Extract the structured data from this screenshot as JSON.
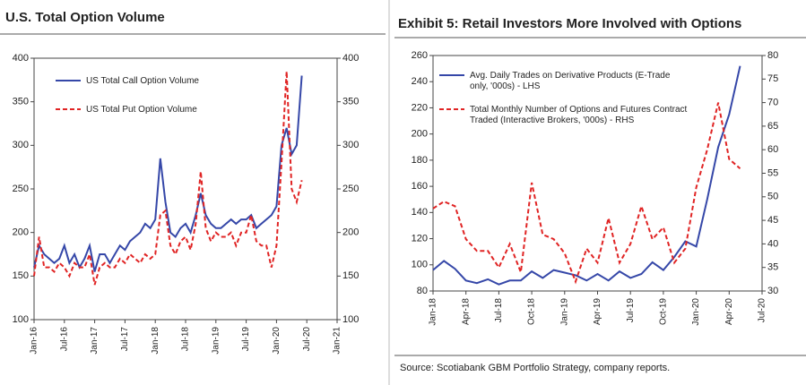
{
  "chart_data": [
    {
      "type": "line",
      "title": "U.S. Total Option Volume",
      "x": [
        "Jan-16",
        "Feb-16",
        "Mar-16",
        "Apr-16",
        "May-16",
        "Jun-16",
        "Jul-16",
        "Aug-16",
        "Sep-16",
        "Oct-16",
        "Nov-16",
        "Dec-16",
        "Jan-17",
        "Feb-17",
        "Mar-17",
        "Apr-17",
        "May-17",
        "Jun-17",
        "Jul-17",
        "Aug-17",
        "Sep-17",
        "Oct-17",
        "Nov-17",
        "Dec-17",
        "Jan-18",
        "Feb-18",
        "Mar-18",
        "Apr-18",
        "May-18",
        "Jun-18",
        "Jul-18",
        "Aug-18",
        "Sep-18",
        "Oct-18",
        "Nov-18",
        "Dec-18",
        "Jan-19",
        "Feb-19",
        "Mar-19",
        "Apr-19",
        "May-19",
        "Jun-19",
        "Jul-19",
        "Aug-19",
        "Sep-19",
        "Oct-19",
        "Nov-19",
        "Dec-19",
        "Jan-20",
        "Feb-20",
        "Mar-20",
        "Apr-20",
        "May-20",
        "Jun-20"
      ],
      "series": [
        {
          "name": "US Total Call Option Volume",
          "color": "#3547a8",
          "style": "solid",
          "values": [
            160,
            185,
            175,
            170,
            165,
            170,
            185,
            165,
            175,
            160,
            170,
            185,
            155,
            175,
            175,
            165,
            175,
            185,
            180,
            190,
            195,
            200,
            210,
            205,
            215,
            285,
            235,
            200,
            195,
            205,
            210,
            200,
            220,
            245,
            220,
            210,
            205,
            205,
            210,
            215,
            210,
            215,
            215,
            220,
            205,
            210,
            215,
            220,
            230,
            300,
            320,
            290,
            300,
            380
          ]
        },
        {
          "name": "US Total Put Option Volume",
          "color": "#e02424",
          "style": "dashed",
          "values": [
            150,
            195,
            160,
            160,
            155,
            165,
            160,
            150,
            165,
            160,
            160,
            175,
            140,
            160,
            165,
            160,
            160,
            170,
            165,
            175,
            170,
            165,
            175,
            170,
            175,
            220,
            225,
            185,
            175,
            190,
            195,
            180,
            210,
            270,
            205,
            190,
            200,
            195,
            195,
            200,
            185,
            200,
            200,
            220,
            190,
            185,
            185,
            160,
            185,
            280,
            385,
            250,
            235,
            260
          ]
        }
      ],
      "xlim": [
        "Jan-16",
        "Jan-21"
      ],
      "xticks": [
        "Jan-16",
        "Jul-16",
        "Jan-17",
        "Jul-17",
        "Jan-18",
        "Jul-18",
        "Jan-19",
        "Jul-19",
        "Jan-20",
        "Jul-20",
        "Jan-21"
      ],
      "ylim": [
        100,
        400
      ],
      "yticks": [
        100,
        150,
        200,
        250,
        300,
        350,
        400
      ],
      "y2lim": [
        100,
        400
      ],
      "y2ticks": [
        100,
        150,
        200,
        250,
        300,
        350,
        400
      ]
    },
    {
      "type": "line",
      "title": "Exhibit 5: Retail Investors More Involved with Options",
      "x": [
        "Jan-18",
        "Feb-18",
        "Mar-18",
        "Apr-18",
        "May-18",
        "Jun-18",
        "Jul-18",
        "Aug-18",
        "Sep-18",
        "Oct-18",
        "Nov-18",
        "Dec-18",
        "Jan-19",
        "Feb-19",
        "Mar-19",
        "Apr-19",
        "May-19",
        "Jun-19",
        "Jul-19",
        "Aug-19",
        "Sep-19",
        "Oct-19",
        "Nov-19",
        "Dec-19",
        "Jan-20",
        "Feb-20",
        "Mar-20",
        "Apr-20",
        "May-20"
      ],
      "series": [
        {
          "name": "Avg. Daily Trades on Derivative Products (E-Trade only, '000s) - LHS",
          "color": "#3547a8",
          "style": "solid",
          "values": [
            96,
            103,
            97,
            88,
            86,
            89,
            85,
            88,
            88,
            95,
            90,
            96,
            94,
            92,
            88,
            93,
            88,
            95,
            90,
            93,
            102,
            96,
            106,
            118,
            114,
            150,
            190,
            215,
            252
          ]
        },
        {
          "name": "Total Monthly Number of Options and Futures Contract Traded (Interactive Brokers, '000s) - RHS",
          "color": "#e02424",
          "style": "dashed",
          "axis": "y2",
          "values": [
            47.5,
            49,
            48,
            41,
            38.5,
            38.5,
            35,
            40,
            34,
            53,
            42,
            41,
            38,
            32,
            39,
            36,
            45.5,
            36,
            40,
            48,
            41,
            43.5,
            36,
            39,
            52,
            60,
            70,
            58,
            56
          ]
        }
      ],
      "xlim": [
        "Jan-18",
        "Jul-20"
      ],
      "xticks": [
        "Jan-18",
        "Apr-18",
        "Jul-18",
        "Oct-18",
        "Jan-19",
        "Apr-19",
        "Jul-19",
        "Oct-19",
        "Jan-20",
        "Apr-20",
        "Jul-20"
      ],
      "ylim": [
        80,
        260
      ],
      "yticks": [
        80,
        100,
        120,
        140,
        160,
        180,
        200,
        220,
        240,
        260
      ],
      "y2lim": [
        30,
        80
      ],
      "y2ticks": [
        30,
        35,
        40,
        45,
        50,
        55,
        60,
        65,
        70,
        75,
        80
      ],
      "note": "Source: Scotiabank GBM Portfolio Strategy, company reports."
    }
  ]
}
